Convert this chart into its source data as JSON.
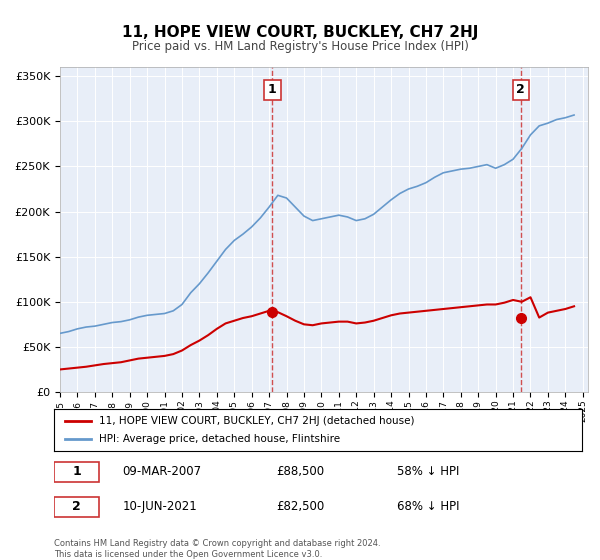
{
  "title": "11, HOPE VIEW COURT, BUCKLEY, CH7 2HJ",
  "subtitle": "Price paid vs. HM Land Registry's House Price Index (HPI)",
  "bg_color": "#f0f4ff",
  "plot_bg_color": "#e8eef8",
  "legend_label_red": "11, HOPE VIEW COURT, BUCKLEY, CH7 2HJ (detached house)",
  "legend_label_blue": "HPI: Average price, detached house, Flintshire",
  "transaction1_label": "1",
  "transaction1_date": "09-MAR-2007",
  "transaction1_price": "£88,500",
  "transaction1_pct": "58% ↓ HPI",
  "transaction1_year": 2007.19,
  "transaction1_value": 88500,
  "transaction2_label": "2",
  "transaction2_date": "10-JUN-2021",
  "transaction2_price": "£82,500",
  "transaction2_pct": "68% ↓ HPI",
  "transaction2_year": 2021.44,
  "transaction2_value": 82500,
  "footer1": "Contains HM Land Registry data © Crown copyright and database right 2024.",
  "footer2": "This data is licensed under the Open Government Licence v3.0.",
  "ylim_max": 360000,
  "red_color": "#cc0000",
  "blue_color": "#6699cc",
  "vline_color": "#cc3333",
  "hpi_years": [
    1995.0,
    1995.5,
    1996.0,
    1996.5,
    1997.0,
    1997.5,
    1998.0,
    1998.5,
    1999.0,
    1999.5,
    2000.0,
    2000.5,
    2001.0,
    2001.5,
    2002.0,
    2002.5,
    2003.0,
    2003.5,
    2004.0,
    2004.5,
    2005.0,
    2005.5,
    2006.0,
    2006.5,
    2007.0,
    2007.5,
    2008.0,
    2008.5,
    2009.0,
    2009.5,
    2010.0,
    2010.5,
    2011.0,
    2011.5,
    2012.0,
    2012.5,
    2013.0,
    2013.5,
    2014.0,
    2014.5,
    2015.0,
    2015.5,
    2016.0,
    2016.5,
    2017.0,
    2017.5,
    2018.0,
    2018.5,
    2019.0,
    2019.5,
    2020.0,
    2020.5,
    2021.0,
    2021.5,
    2022.0,
    2022.5,
    2023.0,
    2023.5,
    2024.0,
    2024.5
  ],
  "hpi_values": [
    65000,
    67000,
    70000,
    72000,
    73000,
    75000,
    77000,
    78000,
    80000,
    83000,
    85000,
    86000,
    87000,
    90000,
    97000,
    110000,
    120000,
    132000,
    145000,
    158000,
    168000,
    175000,
    183000,
    193000,
    205000,
    218000,
    215000,
    205000,
    195000,
    190000,
    192000,
    194000,
    196000,
    194000,
    190000,
    192000,
    197000,
    205000,
    213000,
    220000,
    225000,
    228000,
    232000,
    238000,
    243000,
    245000,
    247000,
    248000,
    250000,
    252000,
    248000,
    252000,
    258000,
    270000,
    285000,
    295000,
    298000,
    302000,
    304000,
    307000
  ],
  "red_years": [
    1995.0,
    1995.5,
    1996.0,
    1996.5,
    1997.0,
    1997.5,
    1998.0,
    1998.5,
    1999.0,
    1999.5,
    2000.0,
    2000.5,
    2001.0,
    2001.5,
    2002.0,
    2002.5,
    2003.0,
    2003.5,
    2004.0,
    2004.5,
    2005.0,
    2005.5,
    2006.0,
    2006.5,
    2007.0,
    2007.5,
    2008.0,
    2008.5,
    2009.0,
    2009.5,
    2010.0,
    2010.5,
    2011.0,
    2011.5,
    2012.0,
    2012.5,
    2013.0,
    2013.5,
    2014.0,
    2014.5,
    2015.0,
    2015.5,
    2016.0,
    2016.5,
    2017.0,
    2017.5,
    2018.0,
    2018.5,
    2019.0,
    2019.5,
    2020.0,
    2020.5,
    2021.0,
    2021.5,
    2022.0,
    2022.5,
    2023.0,
    2023.5,
    2024.0,
    2024.5
  ],
  "red_values": [
    25000,
    26000,
    27000,
    28000,
    29500,
    31000,
    32000,
    33000,
    35000,
    37000,
    38000,
    39000,
    40000,
    42000,
    46000,
    52000,
    57000,
    63000,
    70000,
    76000,
    79000,
    82000,
    84000,
    87000,
    90000,
    88500,
    84000,
    79000,
    75000,
    74000,
    76000,
    77000,
    78000,
    78000,
    76000,
    77000,
    79000,
    82000,
    85000,
    87000,
    88000,
    89000,
    90000,
    91000,
    92000,
    93000,
    94000,
    95000,
    96000,
    97000,
    97000,
    99000,
    102000,
    100000,
    105000,
    82500,
    88000,
    90000,
    92000,
    95000
  ]
}
